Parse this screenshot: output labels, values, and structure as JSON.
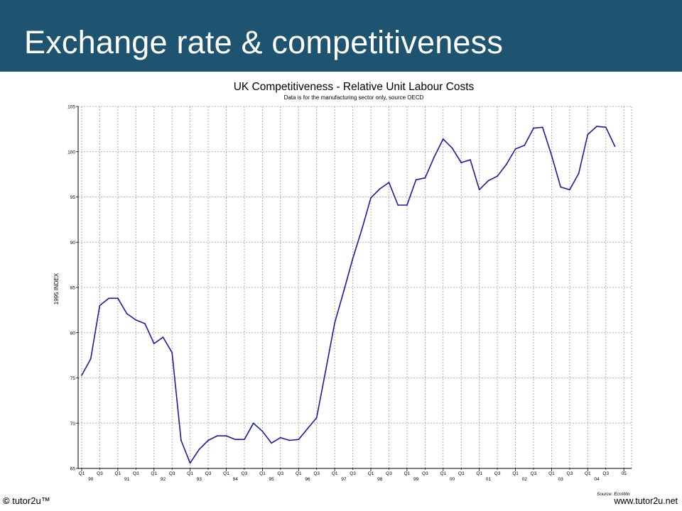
{
  "slide": {
    "title": "Exchange rate & competitiveness",
    "footer_left_brand": "tutor2u™",
    "footer_right": "www.tutor2u.net",
    "header_color": "#1f5470"
  },
  "chart_data": {
    "type": "line",
    "title": "UK Competitiveness - Relative Unit Labour Costs",
    "subtitle": "Data is for the manufacturing sector only, source OECD",
    "ylabel": "1995 INDEX",
    "source_note": "Source: EcoWin",
    "ylim": [
      65,
      105
    ],
    "yticks": [
      65,
      70,
      75,
      80,
      85,
      90,
      95,
      100,
      105
    ],
    "line_color": "#1a1aa8",
    "grid": true,
    "x_quarters": [
      "1990Q1",
      "1990Q2",
      "1990Q3",
      "1990Q4",
      "1991Q1",
      "1991Q2",
      "1991Q3",
      "1991Q4",
      "1992Q1",
      "1992Q2",
      "1992Q3",
      "1992Q4",
      "1993Q1",
      "1993Q2",
      "1993Q3",
      "1993Q4",
      "1994Q1",
      "1994Q2",
      "1994Q3",
      "1994Q4",
      "1995Q1",
      "1995Q2",
      "1995Q3",
      "1995Q4",
      "1996Q1",
      "1996Q2",
      "1996Q3",
      "1996Q4",
      "1997Q1",
      "1997Q2",
      "1997Q3",
      "1997Q4",
      "1998Q1",
      "1998Q2",
      "1998Q3",
      "1998Q4",
      "1999Q1",
      "1999Q2",
      "1999Q3",
      "1999Q4",
      "2000Q1",
      "2000Q2",
      "2000Q3",
      "2000Q4",
      "2001Q1",
      "2001Q2",
      "2001Q3",
      "2001Q4",
      "2002Q1",
      "2002Q2",
      "2002Q3",
      "2002Q4",
      "2003Q1",
      "2003Q2",
      "2003Q3",
      "2003Q4",
      "2004Q1",
      "2004Q2",
      "2004Q3",
      "2004Q4"
    ],
    "values": [
      75.3,
      77.1,
      83.0,
      83.8,
      83.8,
      82.1,
      81.4,
      81.0,
      78.8,
      79.5,
      77.8,
      68.1,
      65.6,
      67.1,
      68.1,
      68.6,
      68.6,
      68.2,
      68.2,
      70.0,
      69.1,
      67.8,
      68.4,
      68.1,
      68.2,
      69.4,
      70.6,
      75.8,
      81.1,
      84.6,
      88.2,
      91.4,
      94.9,
      95.9,
      96.6,
      94.1,
      94.1,
      96.9,
      97.1,
      99.4,
      101.4,
      100.4,
      98.8,
      99.1,
      95.8,
      96.8,
      97.3,
      98.6,
      100.3,
      100.7,
      102.6,
      102.7,
      99.6,
      96.1,
      95.8,
      97.6,
      101.9,
      102.8,
      102.7,
      100.6
    ],
    "x_tick_labels": [
      {
        "q": "Q1",
        "year": "90"
      },
      {
        "q": "Q3",
        "year": ""
      },
      {
        "q": "Q1",
        "year": "91"
      },
      {
        "q": "Q3",
        "year": ""
      },
      {
        "q": "Q1",
        "year": "92"
      },
      {
        "q": "Q3",
        "year": ""
      },
      {
        "q": "Q1",
        "year": "93"
      },
      {
        "q": "Q3",
        "year": ""
      },
      {
        "q": "Q1",
        "year": "94"
      },
      {
        "q": "Q3",
        "year": ""
      },
      {
        "q": "Q1",
        "year": "95"
      },
      {
        "q": "Q3",
        "year": ""
      },
      {
        "q": "Q1",
        "year": "96"
      },
      {
        "q": "Q3",
        "year": ""
      },
      {
        "q": "Q1",
        "year": "97"
      },
      {
        "q": "Q3",
        "year": ""
      },
      {
        "q": "Q1",
        "year": "98"
      },
      {
        "q": "Q3",
        "year": ""
      },
      {
        "q": "Q1",
        "year": "99"
      },
      {
        "q": "Q3",
        "year": ""
      },
      {
        "q": "Q1",
        "year": "00"
      },
      {
        "q": "Q3",
        "year": ""
      },
      {
        "q": "Q1",
        "year": "01"
      },
      {
        "q": "Q3",
        "year": ""
      },
      {
        "q": "Q1",
        "year": "02"
      },
      {
        "q": "Q3",
        "year": ""
      },
      {
        "q": "Q1",
        "year": "03"
      },
      {
        "q": "Q3",
        "year": ""
      },
      {
        "q": "Q1",
        "year": "04"
      },
      {
        "q": "Q3",
        "year": ""
      },
      {
        "q": "",
        "year": "05"
      }
    ]
  }
}
